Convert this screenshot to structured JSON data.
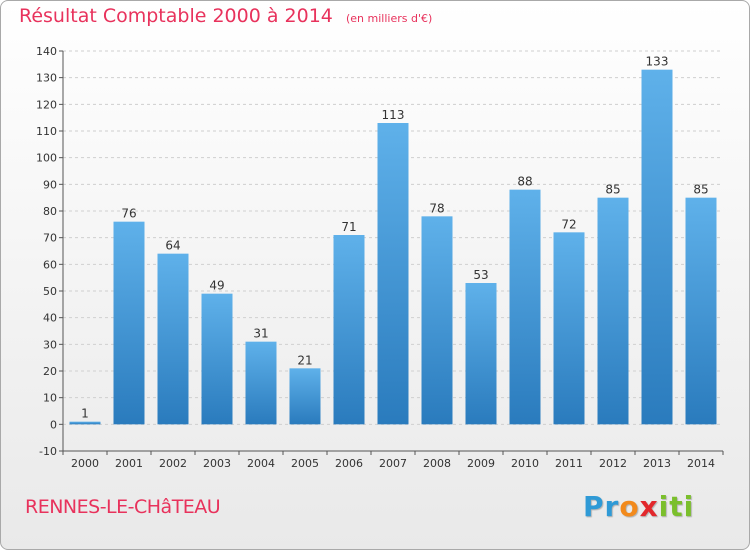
{
  "title": "Résultat Comptable 2000 à 2014",
  "unit": "(en milliers d'€)",
  "place": "RENNES-LE-CHâTEAU",
  "logo": "Proxiti",
  "colors": {
    "title": "#e8325c",
    "bar_top": "#5fb1ea",
    "bar_bottom": "#2a7bbd",
    "grid": "#cfcfcf"
  },
  "chart_data": {
    "type": "bar",
    "categories": [
      "2000",
      "2001",
      "2002",
      "2003",
      "2004",
      "2005",
      "2006",
      "2007",
      "2008",
      "2009",
      "2010",
      "2011",
      "2012",
      "2013",
      "2014"
    ],
    "values": [
      1,
      76,
      64,
      49,
      31,
      21,
      71,
      113,
      78,
      53,
      88,
      72,
      85,
      133,
      85
    ],
    "ylim": [
      -10,
      140
    ],
    "yticks": [
      -10,
      0,
      10,
      20,
      30,
      40,
      50,
      60,
      70,
      80,
      90,
      100,
      110,
      120,
      130,
      140
    ],
    "grid": true
  }
}
